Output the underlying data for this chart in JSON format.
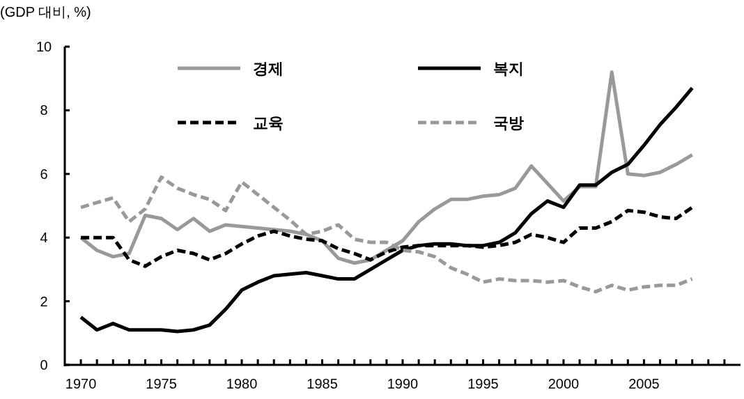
{
  "chart_data": {
    "type": "line",
    "ylabel": "(GDP 대비, %)",
    "legend": "top",
    "x": [
      1970,
      1971,
      1972,
      1973,
      1974,
      1975,
      1976,
      1977,
      1978,
      1979,
      1980,
      1981,
      1982,
      1983,
      1984,
      1985,
      1986,
      1987,
      1988,
      1989,
      1990,
      1991,
      1992,
      1993,
      1994,
      1995,
      1996,
      1997,
      1998,
      1999,
      2000,
      2001,
      2002,
      2003,
      2004,
      2005,
      2006,
      2007,
      2008
    ],
    "series": [
      {
        "name": "경제",
        "color": "#999999",
        "line_style": "solid",
        "values": [
          4.0,
          3.6,
          3.4,
          3.5,
          4.7,
          4.6,
          4.25,
          4.6,
          4.2,
          4.4,
          4.35,
          4.3,
          4.25,
          4.2,
          4.1,
          3.9,
          3.35,
          3.2,
          3.3,
          3.6,
          3.9,
          4.5,
          4.9,
          5.2,
          5.2,
          5.3,
          5.35,
          5.55,
          6.25,
          5.7,
          5.15,
          5.6,
          5.6,
          9.2,
          6.0,
          5.95,
          6.05,
          6.3,
          6.6
        ]
      },
      {
        "name": "복지",
        "color": "#000000",
        "line_style": "solid",
        "values": [
          1.5,
          1.1,
          1.3,
          1.1,
          1.1,
          1.1,
          1.05,
          1.1,
          1.25,
          1.75,
          2.35,
          2.6,
          2.8,
          2.85,
          2.9,
          2.8,
          2.7,
          2.7,
          3.0,
          3.3,
          3.6,
          3.75,
          3.8,
          3.8,
          3.75,
          3.75,
          3.85,
          4.15,
          4.75,
          5.15,
          4.95,
          5.65,
          5.65,
          6.05,
          6.3,
          6.9,
          7.55,
          8.1,
          8.7
        ]
      },
      {
        "name": "교육",
        "color": "#000000",
        "line_style": "dashed",
        "values": [
          4.0,
          4.0,
          4.0,
          3.3,
          3.1,
          3.4,
          3.6,
          3.5,
          3.3,
          3.5,
          3.8,
          4.05,
          4.2,
          4.05,
          3.95,
          3.9,
          3.65,
          3.5,
          3.3,
          3.55,
          3.7,
          3.75,
          3.75,
          3.75,
          3.75,
          3.7,
          3.75,
          3.85,
          4.1,
          4.0,
          3.85,
          4.3,
          4.3,
          4.5,
          4.85,
          4.8,
          4.65,
          4.6,
          4.95
        ]
      },
      {
        "name": "국방",
        "color": "#999999",
        "line_style": "dashed",
        "values": [
          4.95,
          5.1,
          5.25,
          4.5,
          4.9,
          5.9,
          5.55,
          5.35,
          5.2,
          4.85,
          5.75,
          5.35,
          4.95,
          4.55,
          4.1,
          4.2,
          4.4,
          3.95,
          3.85,
          3.85,
          3.6,
          3.55,
          3.4,
          3.05,
          2.85,
          2.6,
          2.7,
          2.65,
          2.65,
          2.6,
          2.65,
          2.45,
          2.3,
          2.5,
          2.35,
          2.45,
          2.5,
          2.5,
          2.7
        ]
      }
    ],
    "xlim": [
      1969,
      2011
    ],
    "xticks": [
      1970,
      {
        "value": 1971,
        "label": null
      },
      {
        "value": 1972,
        "label": null
      },
      {
        "value": 1973,
        "label": null
      },
      {
        "value": 1974,
        "label": null
      },
      1975,
      {
        "value": 1976,
        "label": null
      },
      {
        "value": 1977,
        "label": null
      },
      {
        "value": 1978,
        "label": null
      },
      {
        "value": 1979,
        "label": null
      },
      1980,
      {
        "value": 1981,
        "label": null
      },
      {
        "value": 1982,
        "label": null
      },
      {
        "value": 1983,
        "label": null
      },
      {
        "value": 1984,
        "label": null
      },
      1985,
      {
        "value": 1986,
        "label": null
      },
      {
        "value": 1987,
        "label": null
      },
      {
        "value": 1988,
        "label": null
      },
      {
        "value": 1989,
        "label": null
      },
      1990,
      {
        "value": 1991,
        "label": null
      },
      {
        "value": 1992,
        "label": null
      },
      {
        "value": 1993,
        "label": null
      },
      {
        "value": 1994,
        "label": null
      },
      1995,
      {
        "value": 1996,
        "label": null
      },
      {
        "value": 1997,
        "label": null
      },
      {
        "value": 1998,
        "label": null
      },
      {
        "value": 1999,
        "label": null
      },
      2000,
      {
        "value": 2001,
        "label": null
      },
      {
        "value": 2002,
        "label": null
      },
      {
        "value": 2003,
        "label": null
      },
      {
        "value": 2004,
        "label": null
      },
      2005,
      {
        "value": 2006,
        "label": null
      },
      {
        "value": 2007,
        "label": null
      },
      {
        "value": 2008,
        "label": null
      },
      {
        "value": 2009,
        "label": null
      },
      {
        "value": 2010,
        "label": null
      }
    ],
    "ylim": [
      0,
      10
    ],
    "yticks": [
      0,
      2,
      4,
      6,
      8,
      10
    ],
    "grid": false,
    "marker": "none"
  }
}
